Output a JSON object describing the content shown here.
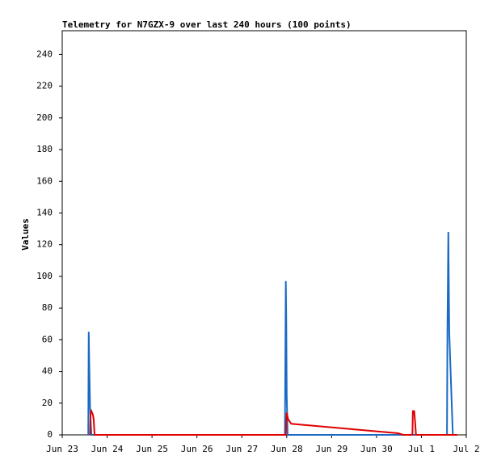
{
  "chart_data": {
    "type": "line",
    "title": "Telemetry for N7GZX-9 over last 240 hours (100 points)",
    "y_label": "Values",
    "xlim": [
      0,
      9
    ],
    "xticks": [
      {
        "value": 0,
        "label": "Jun 23"
      },
      {
        "value": 1,
        "label": "Jun 24"
      },
      {
        "value": 2,
        "label": "Jun 25"
      },
      {
        "value": 3,
        "label": "Jun 26"
      },
      {
        "value": 4,
        "label": "Jun 27"
      },
      {
        "value": 5,
        "label": "Jun 28"
      },
      {
        "value": 6,
        "label": "Jun 29"
      },
      {
        "value": 7,
        "label": "Jun 30"
      },
      {
        "value": 8,
        "label": "Jul 1"
      },
      {
        "value": 9,
        "label": "Jul 2"
      }
    ],
    "ylim": [
      0,
      255
    ],
    "yticks": [
      0,
      20,
      40,
      60,
      80,
      100,
      120,
      140,
      160,
      180,
      200,
      220,
      240
    ],
    "grid": false,
    "series": [
      {
        "color": "#1a6ac4",
        "x": [
          0.58,
          0.59,
          0.6,
          0.62,
          0.65,
          2.0,
          4.0,
          4.96,
          4.97,
          4.98,
          4.99,
          5.0,
          5.02,
          7.0,
          8.57,
          8.58,
          8.6,
          8.62,
          8.7
        ],
        "values": [
          0,
          65,
          48,
          17,
          0,
          0,
          0,
          0,
          48,
          97,
          73,
          25,
          0,
          0,
          0,
          65,
          128,
          65,
          0
        ]
      },
      {
        "color": "#e00000",
        "x": [
          0.62,
          0.63,
          0.65,
          0.68,
          0.7,
          0.72,
          3.0,
          4.98,
          5.0,
          5.03,
          5.1,
          7.48,
          7.6,
          7.8,
          7.81,
          7.84,
          7.86,
          7.88,
          8.8
        ],
        "values": [
          0,
          13,
          15,
          13,
          10,
          0,
          0,
          0,
          14,
          10,
          7,
          1,
          0,
          0,
          15,
          15,
          8,
          0,
          0
        ]
      }
    ]
  }
}
